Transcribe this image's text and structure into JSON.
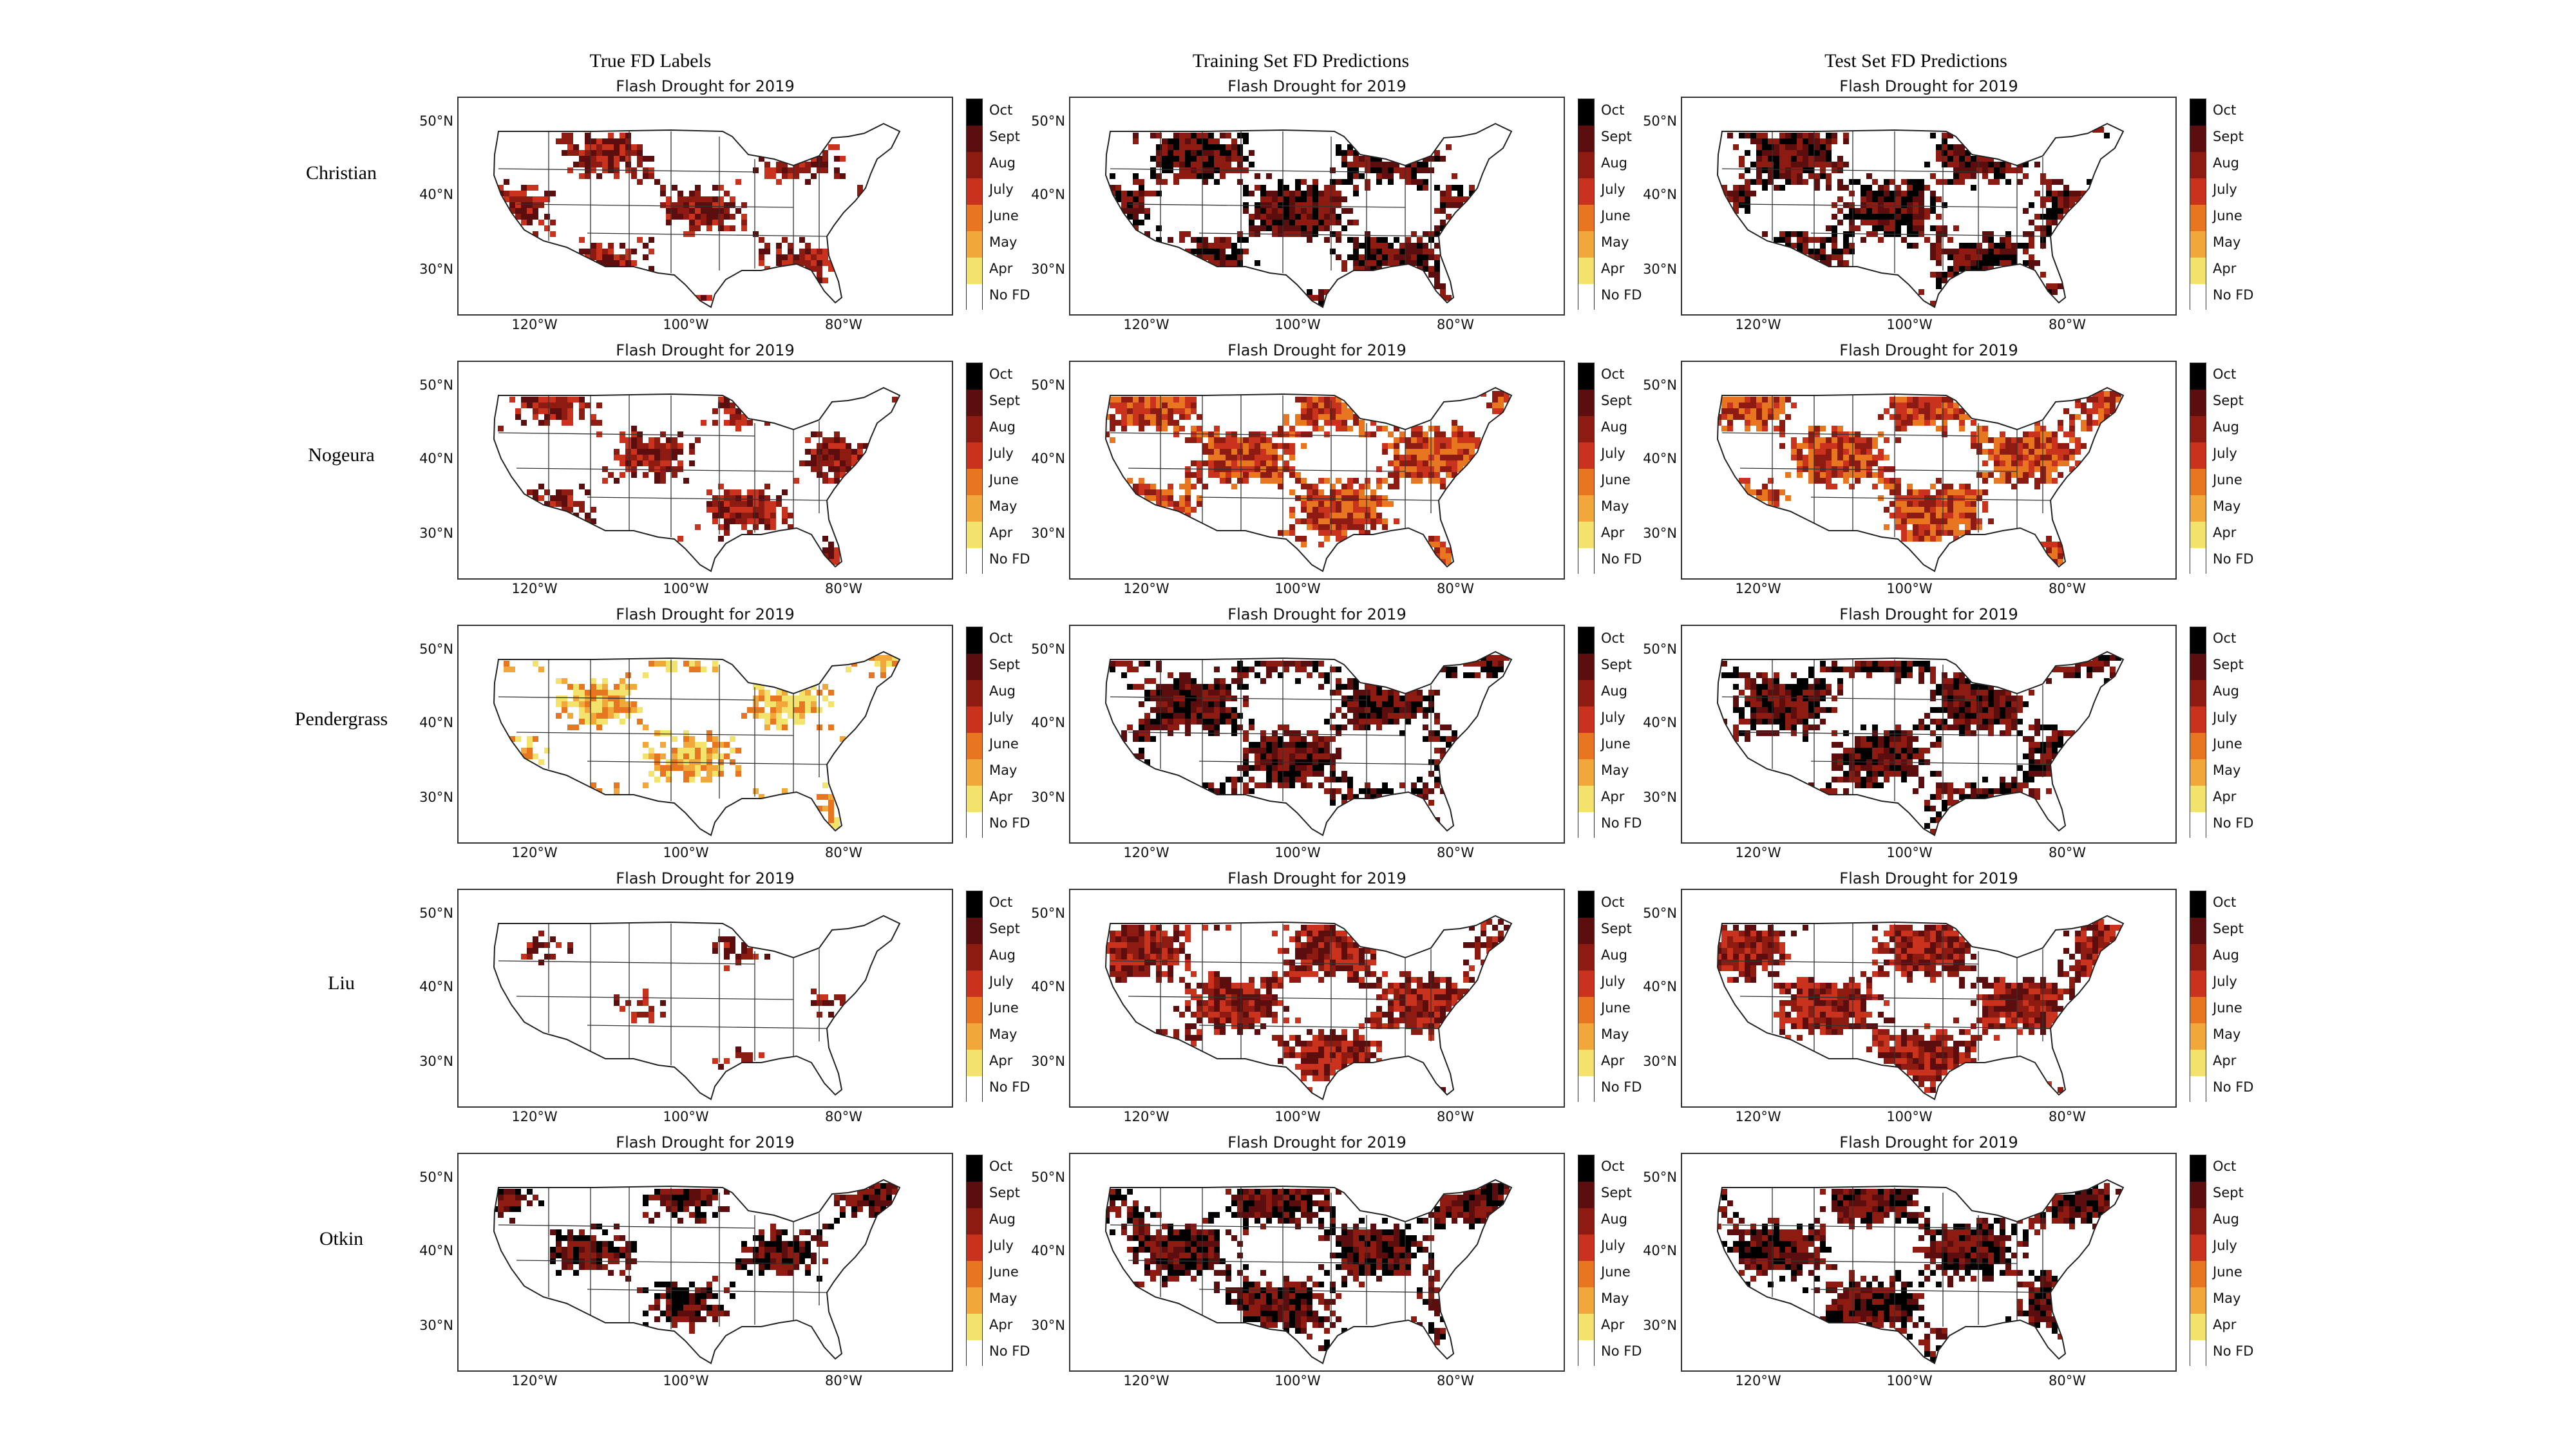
{
  "figure": {
    "column_headers": [
      "True FD Labels",
      "Training Set FD Predictions",
      "Test Set FD Predictions"
    ],
    "row_headers": [
      "Christian",
      "Nogeura",
      "Pendergrass",
      "Liu",
      "Otkin"
    ],
    "panel_title": "Flash Drought for 2019",
    "latitude_ticks": [
      "50°N",
      "40°N",
      "30°N"
    ],
    "longitude_ticks": [
      "120°W",
      "100°W",
      "80°W"
    ],
    "colorbar_labels": [
      "Oct",
      "Sept",
      "Aug",
      "July",
      "June",
      "May",
      "Apr",
      "No FD"
    ],
    "colorbar_colors": [
      "#000000",
      "#5c0d0d",
      "#8e1b12",
      "#c9321d",
      "#e8751f",
      "#f1a73a",
      "#f3e26c",
      "#ffffff"
    ]
  },
  "map_data": {
    "type": "gridded-map",
    "region": "Contiguous United States",
    "variable": "flash drought onset month",
    "year": "2019",
    "category_levels": [
      "No FD",
      "Apr",
      "May",
      "June",
      "July",
      "Aug",
      "Sept",
      "Oct"
    ],
    "dominant_onset_month": {
      "Christian": [
        "Aug",
        "Sept",
        "Sept"
      ],
      "Nogeura": [
        "Aug",
        "July",
        "July"
      ],
      "Pendergrass": [
        "May",
        "Sept",
        "Sept"
      ],
      "Liu": [
        "Aug",
        "Aug",
        "Aug"
      ],
      "Otkin": [
        "Sept",
        "Sept",
        "Sept"
      ]
    }
  }
}
